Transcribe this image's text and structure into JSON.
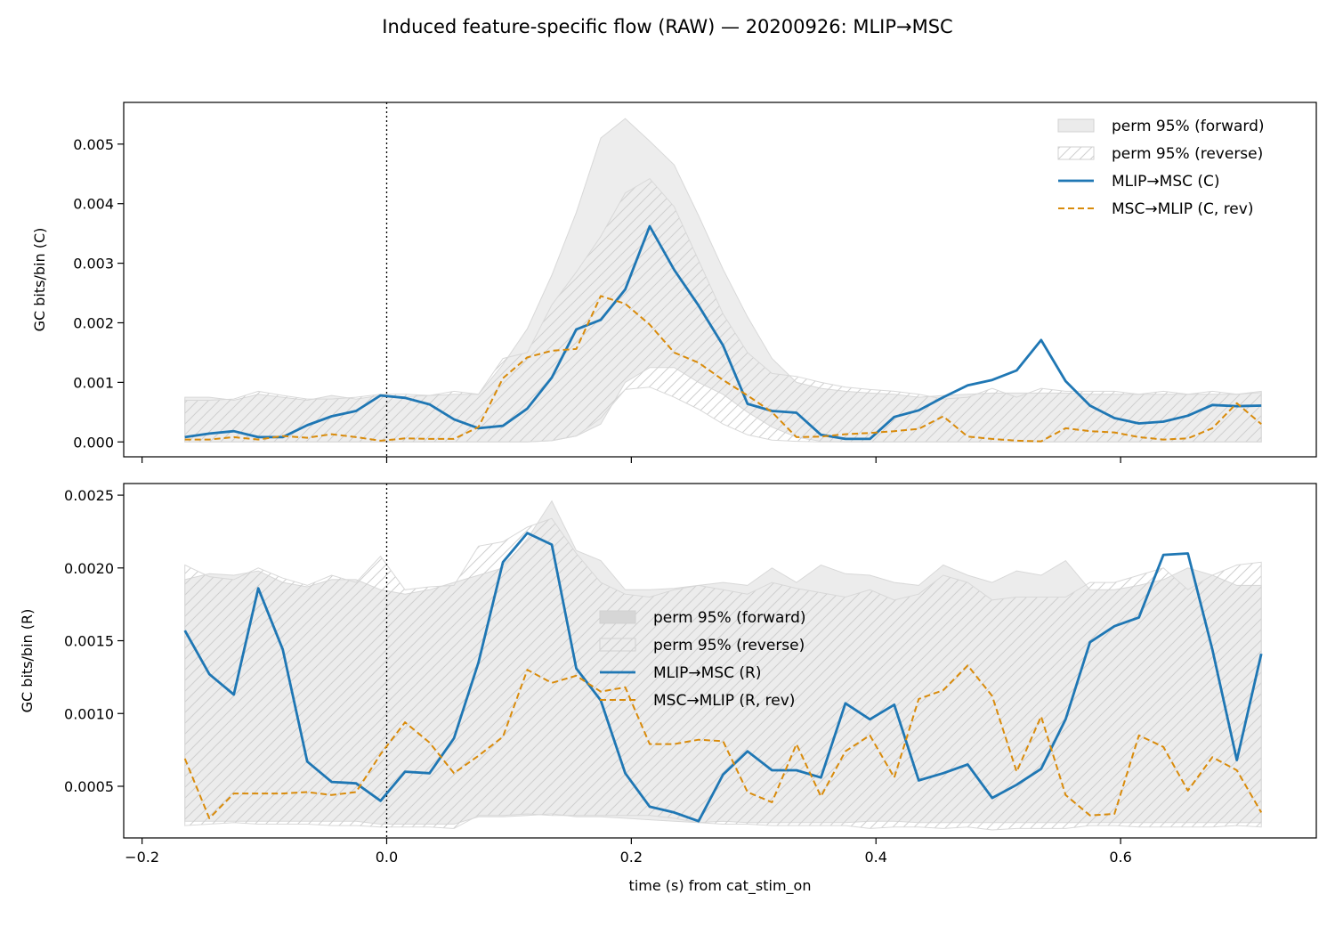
{
  "title": "Induced feature-specific flow (RAW) — 20200926: MLIP→MSC",
  "colors": {
    "forward": "#1f77b4",
    "reverse": "#d98b0b",
    "band": "#ebebeb",
    "hatch": "#cfcfcf"
  },
  "chart_data": [
    {
      "type": "line",
      "panel": "top",
      "xlabel": "",
      "ylabel": "GC bits/bin (C)",
      "xlim": [
        -0.215,
        0.76
      ],
      "ylim": [
        -0.00025,
        0.0057
      ],
      "xticks": [
        -0.2,
        0.0,
        0.2,
        0.4,
        0.6
      ],
      "xtick_labels_visible": false,
      "yticks": [
        0.0,
        0.001,
        0.002,
        0.003,
        0.004,
        0.005
      ],
      "ytick_labels": [
        "0.000",
        "0.001",
        "0.002",
        "0.003",
        "0.004",
        "0.005"
      ],
      "vline_x": 0.0,
      "legend_position": "top-right",
      "legend": [
        "perm 95% (forward)",
        "perm 95% (reverse)",
        "MLIP→MSC (C)",
        "MSC→MLIP (C, rev)"
      ],
      "x": [
        -0.165,
        -0.145,
        -0.125,
        -0.105,
        -0.085,
        -0.065,
        -0.045,
        -0.025,
        -0.005,
        0.015,
        0.035,
        0.055,
        0.075,
        0.095,
        0.115,
        0.135,
        0.155,
        0.175,
        0.195,
        0.215,
        0.235,
        0.255,
        0.275,
        0.295,
        0.315,
        0.335,
        0.355,
        0.375,
        0.395,
        0.415,
        0.435,
        0.455,
        0.475,
        0.495,
        0.515,
        0.535,
        0.555,
        0.575,
        0.595,
        0.615,
        0.635,
        0.655,
        0.675,
        0.695,
        0.715
      ],
      "series": [
        {
          "name": "MLIP→MSC (C)",
          "style": "solid",
          "values": [
            8e-05,
            0.00014,
            0.00018,
            8e-05,
            8e-05,
            0.00028,
            0.00043,
            0.00052,
            0.00078,
            0.00074,
            0.00063,
            0.00038,
            0.00023,
            0.00027,
            0.00056,
            0.00108,
            0.00189,
            0.00205,
            0.00256,
            0.00362,
            0.00289,
            0.00229,
            0.00162,
            0.00064,
            0.00052,
            0.00049,
            0.00012,
            5e-05,
            5e-05,
            0.00042,
            0.00053,
            0.00075,
            0.00095,
            0.00104,
            0.0012,
            0.00171,
            0.00102,
            0.00061,
            0.0004,
            0.00031,
            0.00034,
            0.00044,
            0.00062,
            0.0006,
            0.00061
          ]
        },
        {
          "name": "MSC→MLIP (C, rev)",
          "style": "dashed",
          "values": [
            4e-05,
            4e-05,
            8e-05,
            4e-05,
            0.0001,
            7e-05,
            0.00013,
            8e-05,
            2e-05,
            6e-05,
            5e-05,
            5e-05,
            0.00025,
            0.00107,
            0.00142,
            0.00153,
            0.00156,
            0.00245,
            0.00232,
            0.00197,
            0.0015,
            0.00133,
            0.00104,
            0.00078,
            0.0005,
            8e-05,
            9e-05,
            0.00013,
            0.00015,
            0.00018,
            0.00022,
            0.00043,
            9e-05,
            5e-05,
            2e-05,
            1e-05,
            0.00023,
            0.00018,
            0.00016,
            8e-05,
            4e-05,
            6e-05,
            0.00023,
            0.00065,
            0.0003
          ]
        }
      ],
      "bands": [
        {
          "name": "perm 95% (forward)",
          "fill": "solid",
          "lower": [
            0,
            0,
            0,
            0,
            0,
            0,
            0,
            0,
            0,
            0,
            0,
            0,
            0,
            0,
            0,
            2e-05,
            0.0001,
            0.0003,
            0.001,
            0.00125,
            0.00125,
            0.001,
            0.0008,
            0.0005,
            0.00025,
            8e-05,
            1e-05,
            0,
            0,
            0,
            0,
            0,
            0,
            0,
            0,
            0,
            0,
            0,
            0,
            0,
            0,
            0,
            0,
            0,
            0
          ],
          "upper": [
            0.00075,
            0.00075,
            0.0007,
            0.0008,
            0.00075,
            0.0007,
            0.00078,
            0.00072,
            0.00078,
            0.00076,
            0.00078,
            0.0008,
            0.0008,
            0.0013,
            0.0019,
            0.0028,
            0.00385,
            0.0051,
            0.00543,
            0.00505,
            0.00465,
            0.0038,
            0.0029,
            0.0021,
            0.0014,
            0.001,
            0.0009,
            0.00085,
            0.00082,
            0.0008,
            0.00075,
            0.00078,
            0.0008,
            0.00082,
            0.00082,
            0.00082,
            0.00082,
            0.0008,
            0.0008,
            0.0008,
            0.0008,
            0.0008,
            0.0008,
            0.0008,
            0.00083
          ]
        },
        {
          "name": "perm 95% (reverse)",
          "fill": "hatch",
          "lower": [
            0,
            0,
            0,
            0,
            0,
            0,
            0,
            0,
            0,
            0,
            0,
            0,
            0,
            0,
            0,
            2e-05,
            0.0001,
            0.0004,
            0.00088,
            0.00092,
            0.00075,
            0.00055,
            0.0003,
            0.00012,
            3e-05,
            1e-05,
            0,
            0,
            0,
            0,
            0,
            0,
            0,
            0,
            0,
            0,
            0,
            0,
            0,
            0,
            0,
            0,
            0,
            0,
            0
          ],
          "upper": [
            0.0007,
            0.0007,
            0.00072,
            0.00085,
            0.00078,
            0.00072,
            0.00072,
            0.00075,
            0.0008,
            0.0008,
            0.00078,
            0.00085,
            0.0008,
            0.0014,
            0.0015,
            0.0023,
            0.00285,
            0.00345,
            0.00418,
            0.00442,
            0.00395,
            0.00305,
            0.00215,
            0.0015,
            0.00115,
            0.0011,
            0.001,
            0.00092,
            0.00088,
            0.00085,
            0.0008,
            0.00072,
            0.00075,
            0.0009,
            0.00075,
            0.0009,
            0.00085,
            0.00085,
            0.00085,
            0.0008,
            0.00085,
            0.0008,
            0.00085,
            0.0008,
            0.00085
          ]
        }
      ]
    },
    {
      "type": "line",
      "panel": "bottom",
      "xlabel": "time (s) from cat_stim_on",
      "ylabel": "GC bits/bin (R)",
      "xlim": [
        -0.215,
        0.76
      ],
      "ylim": [
        0.000145,
        0.00258
      ],
      "xticks": [
        -0.2,
        0.0,
        0.2,
        0.4,
        0.6
      ],
      "xtick_labels": [
        "−0.2",
        "0.0",
        "0.2",
        "0.4",
        "0.6"
      ],
      "yticks": [
        0.0005,
        0.001,
        0.0015,
        0.002,
        0.0025
      ],
      "ytick_labels": [
        "0.0005",
        "0.0010",
        "0.0015",
        "0.0020",
        "0.0025"
      ],
      "vline_x": 0.0,
      "legend_position": "center",
      "legend": [
        "perm 95% (forward)",
        "perm 95% (reverse)",
        "MLIP→MSC (R)",
        "MSC→MLIP (R, rev)"
      ],
      "x": [
        -0.165,
        -0.145,
        -0.125,
        -0.105,
        -0.085,
        -0.065,
        -0.045,
        -0.025,
        -0.005,
        0.015,
        0.035,
        0.055,
        0.075,
        0.095,
        0.115,
        0.135,
        0.155,
        0.175,
        0.195,
        0.215,
        0.235,
        0.255,
        0.275,
        0.295,
        0.315,
        0.335,
        0.355,
        0.375,
        0.395,
        0.415,
        0.435,
        0.455,
        0.475,
        0.495,
        0.515,
        0.535,
        0.555,
        0.575,
        0.595,
        0.615,
        0.635,
        0.655,
        0.675,
        0.695,
        0.715
      ],
      "series": [
        {
          "name": "MLIP→MSC (R)",
          "style": "solid",
          "values": [
            0.00157,
            0.00127,
            0.00113,
            0.00186,
            0.00144,
            0.00067,
            0.00053,
            0.00052,
            0.0004,
            0.0006,
            0.00059,
            0.00083,
            0.00135,
            0.00204,
            0.00224,
            0.00216,
            0.00131,
            0.00109,
            0.00059,
            0.00036,
            0.00032,
            0.00026,
            0.00058,
            0.00074,
            0.00061,
            0.00061,
            0.00056,
            0.00107,
            0.00096,
            0.00106,
            0.00054,
            0.00059,
            0.00065,
            0.00042,
            0.00051,
            0.00062,
            0.00096,
            0.00149,
            0.0016,
            0.00166,
            0.00209,
            0.0021,
            0.00144,
            0.00068,
            0.00141
          ]
        },
        {
          "name": "MSC→MLIP (R, rev)",
          "style": "dashed",
          "values": [
            0.00069,
            0.00028,
            0.00045,
            0.00045,
            0.00045,
            0.00046,
            0.00044,
            0.00046,
            0.00072,
            0.00094,
            0.0008,
            0.00059,
            0.00071,
            0.00084,
            0.0013,
            0.00121,
            0.00126,
            0.00115,
            0.00118,
            0.00079,
            0.00079,
            0.00082,
            0.00081,
            0.00046,
            0.00039,
            0.00079,
            0.00043,
            0.00074,
            0.00085,
            0.00056,
            0.0011,
            0.00116,
            0.00133,
            0.00112,
            0.0006,
            0.00098,
            0.00044,
            0.0003,
            0.00031,
            0.00085,
            0.00077,
            0.00047,
            0.0007,
            0.00061,
            0.00032
          ]
        }
      ],
      "bands": [
        {
          "name": "perm 95% (forward)",
          "fill": "solid",
          "lower": [
            0.00026,
            0.00026,
            0.00026,
            0.00026,
            0.00026,
            0.00026,
            0.00026,
            0.00026,
            0.00024,
            0.00024,
            0.00024,
            0.00024,
            0.00029,
            0.00029,
            0.0003,
            0.00031,
            0.00029,
            0.00029,
            0.00028,
            0.00027,
            0.00026,
            0.00025,
            0.00026,
            0.00025,
            0.00025,
            0.00025,
            0.00025,
            0.00025,
            0.00026,
            0.00026,
            0.00025,
            0.00025,
            0.00025,
            0.00025,
            0.00025,
            0.00025,
            0.00025,
            0.00025,
            0.00025,
            0.00025,
            0.00025,
            0.00025,
            0.00025,
            0.00025,
            0.00025
          ],
          "upper": [
            0.00192,
            0.00196,
            0.00195,
            0.00198,
            0.0019,
            0.00187,
            0.00192,
            0.00192,
            0.00185,
            0.00182,
            0.00185,
            0.0019,
            0.00195,
            0.002,
            0.0022,
            0.00246,
            0.00212,
            0.00205,
            0.00185,
            0.00185,
            0.00186,
            0.00188,
            0.0019,
            0.00188,
            0.002,
            0.0019,
            0.00202,
            0.00196,
            0.00195,
            0.0019,
            0.00188,
            0.00202,
            0.00195,
            0.0019,
            0.00198,
            0.00195,
            0.00205,
            0.00185,
            0.00185,
            0.00188,
            0.00192,
            0.002,
            0.00195,
            0.00188,
            0.00188
          ]
        },
        {
          "name": "perm 95% (reverse)",
          "fill": "hatch",
          "lower": [
            0.00023,
            0.00024,
            0.00025,
            0.00024,
            0.00024,
            0.00024,
            0.00023,
            0.00023,
            0.00022,
            0.00022,
            0.00022,
            0.00021,
            0.0003,
            0.0003,
            0.00031,
            0.0003,
            0.0003,
            0.0003,
            0.0003,
            0.0003,
            0.00028,
            0.00025,
            0.00024,
            0.00024,
            0.00023,
            0.00023,
            0.00023,
            0.00023,
            0.00021,
            0.00022,
            0.00022,
            0.00021,
            0.00022,
            0.0002,
            0.00021,
            0.00021,
            0.00021,
            0.00023,
            0.00023,
            0.00022,
            0.00022,
            0.00022,
            0.00022,
            0.00023,
            0.00022
          ],
          "upper": [
            0.00202,
            0.00194,
            0.00192,
            0.002,
            0.00193,
            0.00188,
            0.00195,
            0.0019,
            0.00208,
            0.00185,
            0.00187,
            0.00188,
            0.00215,
            0.00218,
            0.00228,
            0.00234,
            0.0021,
            0.0019,
            0.00182,
            0.0018,
            0.00185,
            0.00188,
            0.00185,
            0.00182,
            0.0019,
            0.00186,
            0.00183,
            0.0018,
            0.00185,
            0.00178,
            0.00182,
            0.00195,
            0.0019,
            0.00178,
            0.0018,
            0.0018,
            0.0018,
            0.0019,
            0.0019,
            0.00195,
            0.002,
            0.00185,
            0.00195,
            0.00202,
            0.00204
          ]
        }
      ]
    }
  ]
}
